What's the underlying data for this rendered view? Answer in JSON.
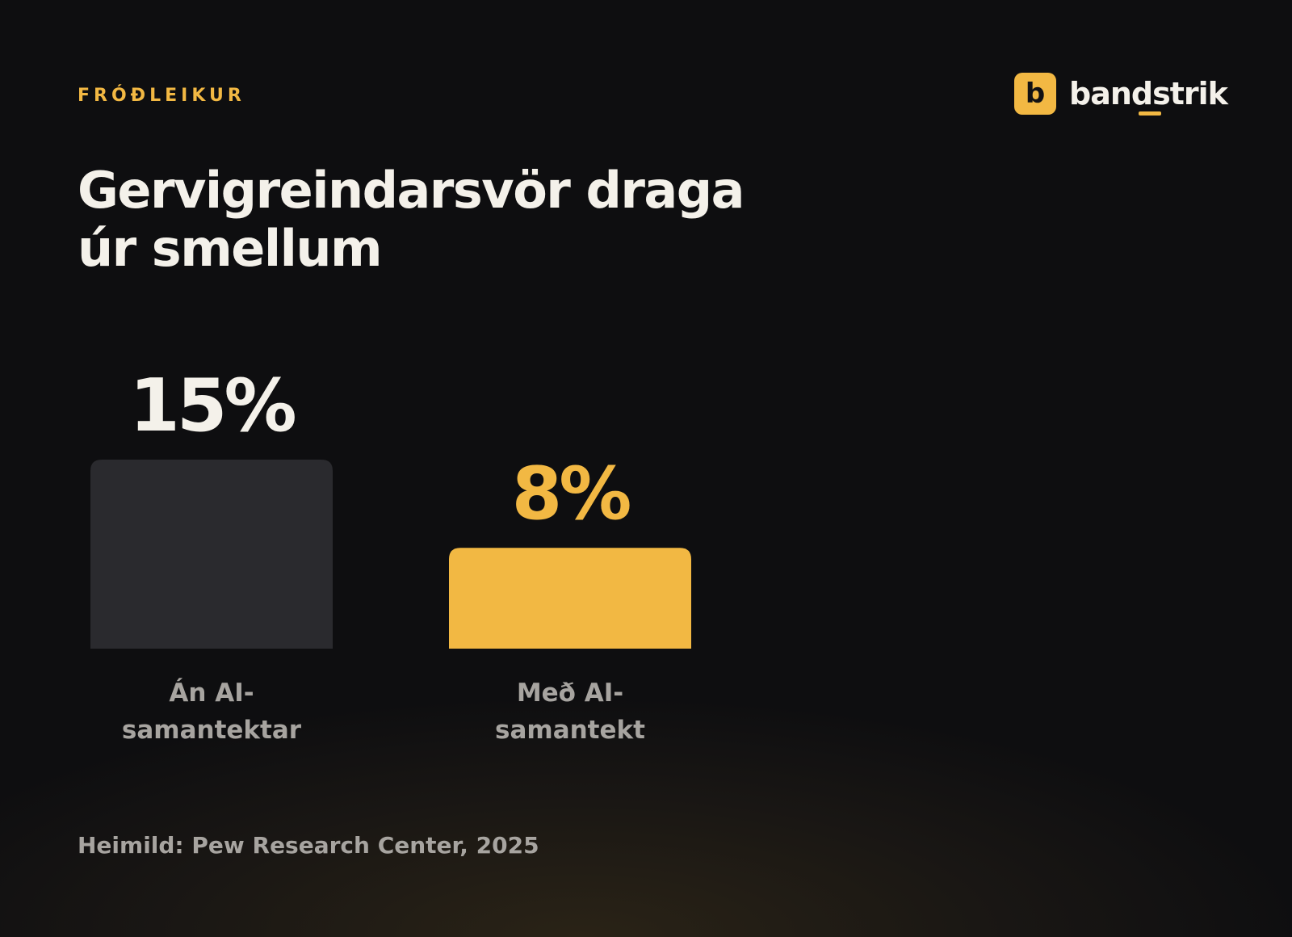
{
  "eyebrow": "FRÓÐLEIKUR",
  "brand": {
    "mark": "b",
    "name": "bandstrik"
  },
  "title": "Gervigreindarsvör draga úr smellum",
  "source": "Heimild: Pew Research Center, 2025",
  "colors": {
    "background": "#0e0e10",
    "accent": "#f2b843",
    "neutral_bar": "#2a2a2e",
    "text": "#f4f1ea",
    "muted_text": "#a7a4a0"
  },
  "chart_data": {
    "type": "bar",
    "title": "Gervigreindarsvör draga úr smellum",
    "xlabel": "",
    "ylabel": "",
    "unit": "%",
    "ylim": [
      0,
      15
    ],
    "grid": false,
    "categories": [
      [
        "Án AI-",
        "samantektar"
      ],
      [
        "Með AI-",
        "samantekt"
      ]
    ],
    "values": [
      15,
      8
    ],
    "value_labels": [
      "15%",
      "8%"
    ],
    "bar_colors": [
      "#2a2a2e",
      "#f2b843"
    ],
    "label_colors": [
      "#f4f1ea",
      "#f2b843"
    ]
  }
}
